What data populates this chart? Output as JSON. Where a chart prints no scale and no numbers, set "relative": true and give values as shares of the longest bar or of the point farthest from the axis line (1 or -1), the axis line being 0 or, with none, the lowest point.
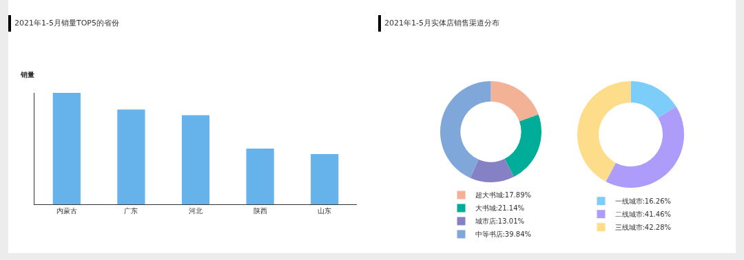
{
  "chart_data": [
    {
      "type": "bar",
      "title": "2021年1-5月销量TOP5的省份",
      "ylabel": "销量",
      "relative": true,
      "categories": [
        "内蒙古",
        "广东",
        "河北",
        "陕西",
        "山东"
      ],
      "values": [
        1,
        0.85,
        0.8,
        0.5,
        0.45
      ],
      "color": "#66b3ec",
      "grid": false,
      "legend": false
    },
    {
      "type": "donut",
      "title": "2021年1-5月实体店销售渠道分布",
      "categories": [
        "超大书城:17.89%",
        "大书城:21.14%",
        "城市店:13.01%",
        "中等书店:39.84%"
      ],
      "values": [
        17.89,
        21.14,
        13.01,
        39.84
      ],
      "colors": [
        "#f3b195",
        "#00ad98",
        "#8680c4",
        "#7fa7d9"
      ],
      "legend": "bottom"
    },
    {
      "type": "donut",
      "categories": [
        "一线城市:16.26%",
        "二线城市:41.46%",
        "三线城市:42.28%"
      ],
      "values": [
        16.26,
        41.46,
        42.28
      ],
      "colors": [
        "#7dcdfb",
        "#ad9cf9",
        "#fddc8a"
      ],
      "legend": "bottom"
    }
  ]
}
